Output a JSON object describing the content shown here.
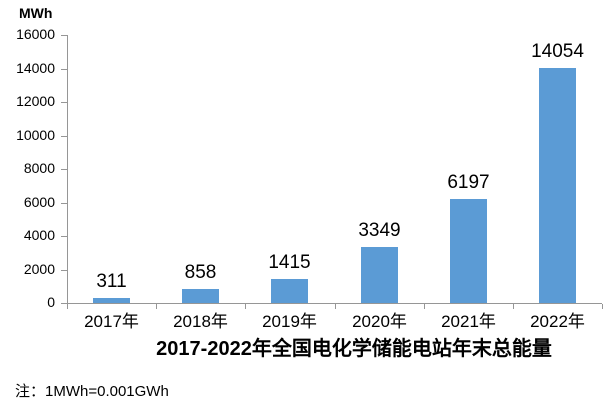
{
  "chart_data": {
    "type": "bar",
    "title": "2017-2022年全国电化学储能电站年末总能量",
    "categories": [
      "2017年",
      "2018年",
      "2019年",
      "2020年",
      "2021年",
      "2022年"
    ],
    "values": [
      311,
      858,
      1415,
      3349,
      6197,
      14054
    ],
    "data_labels": [
      "311",
      "858",
      "1415",
      "3349",
      "6197",
      "14054"
    ],
    "xlabel": "",
    "ylabel": "MWh",
    "ylim": [
      0,
      16000
    ],
    "ytick_step": 2000,
    "ytick_labels": [
      "0",
      "2000",
      "4000",
      "6000",
      "8000",
      "10000",
      "12000",
      "14000",
      "16000"
    ],
    "grid": false,
    "legend": "none",
    "bar_color": "#5B9BD5",
    "axis_color": "#969696",
    "text_color": "#000000",
    "footnote": "注：1MWh=0.001GWh"
  }
}
